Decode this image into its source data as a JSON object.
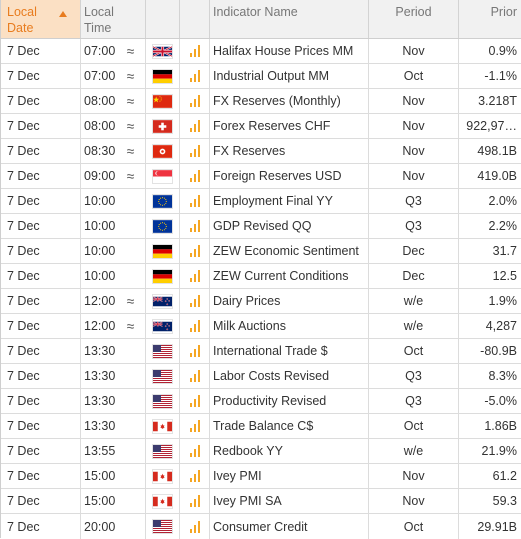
{
  "header": {
    "date_line1": "Local",
    "date_line2": "Date",
    "time_line1": "Local",
    "time_line2": "Time",
    "indicator": "Indicator Name",
    "period": "Period",
    "prior": "Prior"
  },
  "rows": [
    {
      "date": "7 Dec",
      "time": "07:00",
      "approx": "≈",
      "flag": "flag-uk",
      "indicator": "Halifax House Prices MM",
      "period": "Nov",
      "prior": "0.9%"
    },
    {
      "date": "7 Dec",
      "time": "07:00",
      "approx": "≈",
      "flag": "flag-de",
      "indicator": "Industrial Output MM",
      "period": "Oct",
      "prior": "-1.1%"
    },
    {
      "date": "7 Dec",
      "time": "08:00",
      "approx": "≈",
      "flag": "flag-cn",
      "indicator": "FX Reserves (Monthly)",
      "period": "Nov",
      "prior": "3.218T"
    },
    {
      "date": "7 Dec",
      "time": "08:00",
      "approx": "≈",
      "flag": "flag-ch",
      "indicator": "Forex Reserves CHF",
      "period": "Nov",
      "prior": "922,97…"
    },
    {
      "date": "7 Dec",
      "time": "08:30",
      "approx": "≈",
      "flag": "flag-hk",
      "indicator": "FX Reserves",
      "period": "Nov",
      "prior": "498.1B"
    },
    {
      "date": "7 Dec",
      "time": "09:00",
      "approx": "≈",
      "flag": "flag-sg",
      "indicator": "Foreign Reserves USD",
      "period": "Nov",
      "prior": "419.0B"
    },
    {
      "date": "7 Dec",
      "time": "10:00",
      "approx": "",
      "flag": "flag-eu",
      "indicator": "Employment Final YY",
      "period": "Q3",
      "prior": "2.0%"
    },
    {
      "date": "7 Dec",
      "time": "10:00",
      "approx": "",
      "flag": "flag-eu",
      "indicator": "GDP Revised QQ",
      "period": "Q3",
      "prior": "2.2%"
    },
    {
      "date": "7 Dec",
      "time": "10:00",
      "approx": "",
      "flag": "flag-de",
      "indicator": "ZEW Economic Sentiment",
      "period": "Dec",
      "prior": "31.7"
    },
    {
      "date": "7 Dec",
      "time": "10:00",
      "approx": "",
      "flag": "flag-de",
      "indicator": "ZEW Current Conditions",
      "period": "Dec",
      "prior": "12.5"
    },
    {
      "date": "7 Dec",
      "time": "12:00",
      "approx": "≈",
      "flag": "flag-nz",
      "indicator": "Dairy Prices",
      "period": "w/e",
      "prior": "1.9%"
    },
    {
      "date": "7 Dec",
      "time": "12:00",
      "approx": "≈",
      "flag": "flag-nz",
      "indicator": "Milk Auctions",
      "period": "w/e",
      "prior": "4,287"
    },
    {
      "date": "7 Dec",
      "time": "13:30",
      "approx": "",
      "flag": "flag-us",
      "indicator": "International Trade $",
      "period": "Oct",
      "prior": "-80.9B"
    },
    {
      "date": "7 Dec",
      "time": "13:30",
      "approx": "",
      "flag": "flag-us",
      "indicator": "Labor Costs Revised",
      "period": "Q3",
      "prior": "8.3%"
    },
    {
      "date": "7 Dec",
      "time": "13:30",
      "approx": "",
      "flag": "flag-us",
      "indicator": "Productivity Revised",
      "period": "Q3",
      "prior": "-5.0%"
    },
    {
      "date": "7 Dec",
      "time": "13:30",
      "approx": "",
      "flag": "flag-ca",
      "indicator": "Trade Balance C$",
      "period": "Oct",
      "prior": "1.86B"
    },
    {
      "date": "7 Dec",
      "time": "13:55",
      "approx": "",
      "flag": "flag-us",
      "indicator": "Redbook YY",
      "period": "w/e",
      "prior": "21.9%"
    },
    {
      "date": "7 Dec",
      "time": "15:00",
      "approx": "",
      "flag": "flag-ca",
      "indicator": "Ivey PMI",
      "period": "Nov",
      "prior": "61.2"
    },
    {
      "date": "7 Dec",
      "time": "15:00",
      "approx": "",
      "flag": "flag-ca",
      "indicator": "Ivey PMI SA",
      "period": "Nov",
      "prior": "59.3"
    },
    {
      "date": "7 Dec",
      "time": "20:00",
      "approx": "",
      "flag": "flag-us",
      "indicator": "Consumer Credit",
      "period": "Oct",
      "prior": "29.91B"
    }
  ],
  "colors": {
    "accent": "#e87c1f",
    "sorted_header_bg": "#fbe0c4",
    "importance_bar": "#f5a623"
  }
}
